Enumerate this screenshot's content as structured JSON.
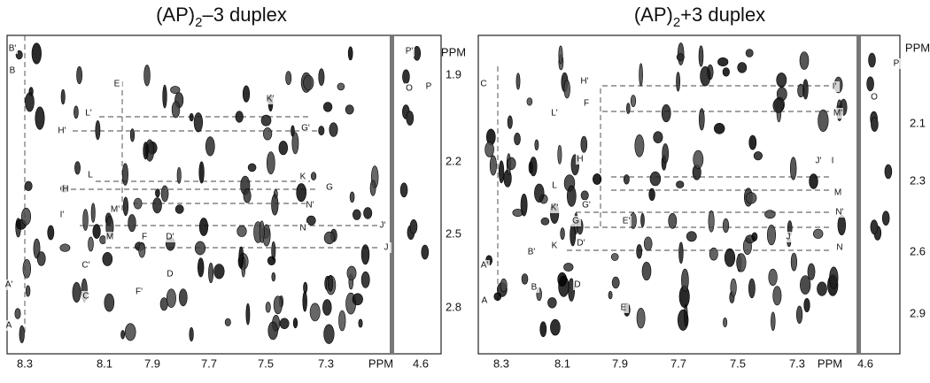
{
  "panels": [
    {
      "title": {
        "main": "(AP)",
        "sub": "2",
        "rest": "–3 duplex"
      },
      "x_ticks": [
        "8.3",
        "8.1",
        "7.9",
        "7.7",
        "7.5",
        "7.3",
        "PPM",
        "4.6"
      ],
      "y_ticks": [
        "PPM",
        "1.9",
        "2.2",
        "2.5",
        "2.8"
      ],
      "peak_labels": [
        "B'",
        "B",
        "E",
        "L'",
        "H'",
        "K'",
        "G'",
        "K",
        "L",
        "H",
        "G",
        "M'",
        "N'",
        "I'",
        "M",
        "F",
        "D'",
        "J'",
        "N",
        "J",
        "C'",
        "C",
        "F'",
        "D",
        "A'",
        "A",
        "P'",
        "P",
        "O"
      ]
    },
    {
      "title": {
        "main": "(AP)",
        "sub": "2",
        "rest": "+3 duplex"
      },
      "x_ticks": [
        "8.3",
        "8.1",
        "7.9",
        "7.7",
        "7.5",
        "7.3",
        "PPM",
        "4.6"
      ],
      "y_ticks": [
        "PPM",
        "2.1",
        "2.3",
        "2.6",
        "2.9"
      ],
      "peak_labels": [
        "C",
        "H'",
        "F",
        "L'",
        "I'",
        "M'",
        "H",
        "L",
        "G'",
        "K'",
        "J'",
        "I",
        "M",
        "N'",
        "G",
        "E'",
        "D'",
        "K",
        "J",
        "N",
        "A'",
        "B'",
        "B",
        "A",
        "D",
        "E",
        "P",
        "O"
      ]
    }
  ]
}
